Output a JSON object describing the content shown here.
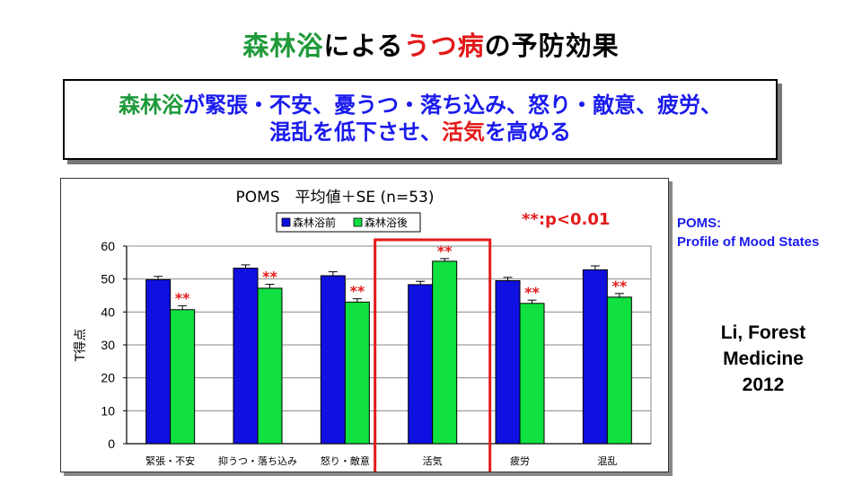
{
  "slide": {
    "title_part1": "森林浴",
    "title_part2": "による",
    "title_part3": "うつ病",
    "title_part4": "の予防効果",
    "msg_part1": "森林浴",
    "msg_part2": "が緊張・不安、憂うつ・落ち込み、怒り・敵意、疲労、",
    "msg_part3": "混乱を低下させ、",
    "msg_part4": "活気",
    "msg_part5": "を高める",
    "poms_line1": "POMS:",
    "poms_line2": "Profile of Mood States",
    "cite_line1": "Li, Forest",
    "cite_line2": "Medicine",
    "cite_line3": "2012",
    "colors": {
      "green": "#1f9a3a",
      "red": "#e31a1a",
      "blue": "#1a1aee",
      "before_bar": "#1010e0",
      "after_bar": "#10e040"
    }
  },
  "chart_data": {
    "type": "bar",
    "title": "POMS　平均値＋SE (n=53)",
    "significance_label": "**:p<0.01",
    "ylabel": "T得点",
    "xlabel": "",
    "ylim": [
      0,
      60
    ],
    "yticks": [
      0,
      10,
      20,
      30,
      40,
      50,
      60
    ],
    "grid": true,
    "legend_position": "top",
    "categories": [
      "緊張・不安",
      "抑うつ・落ち込み",
      "怒り・敵意",
      "活気",
      "疲労",
      "混乱"
    ],
    "series": [
      {
        "name": "森林浴前",
        "values": [
          49.8,
          53.3,
          51.0,
          48.3,
          49.5,
          52.8
        ],
        "se": [
          1.0,
          1.0,
          1.2,
          1.0,
          1.0,
          1.2
        ]
      },
      {
        "name": "森林浴後",
        "values": [
          40.7,
          47.2,
          43.0,
          55.4,
          42.6,
          44.5
        ],
        "se": [
          1.2,
          1.2,
          1.0,
          0.8,
          1.0,
          1.1
        ]
      }
    ],
    "significance_marks": [
      "**",
      "**",
      "**",
      "**",
      "**",
      "**"
    ],
    "highlighted_category": "活気"
  }
}
